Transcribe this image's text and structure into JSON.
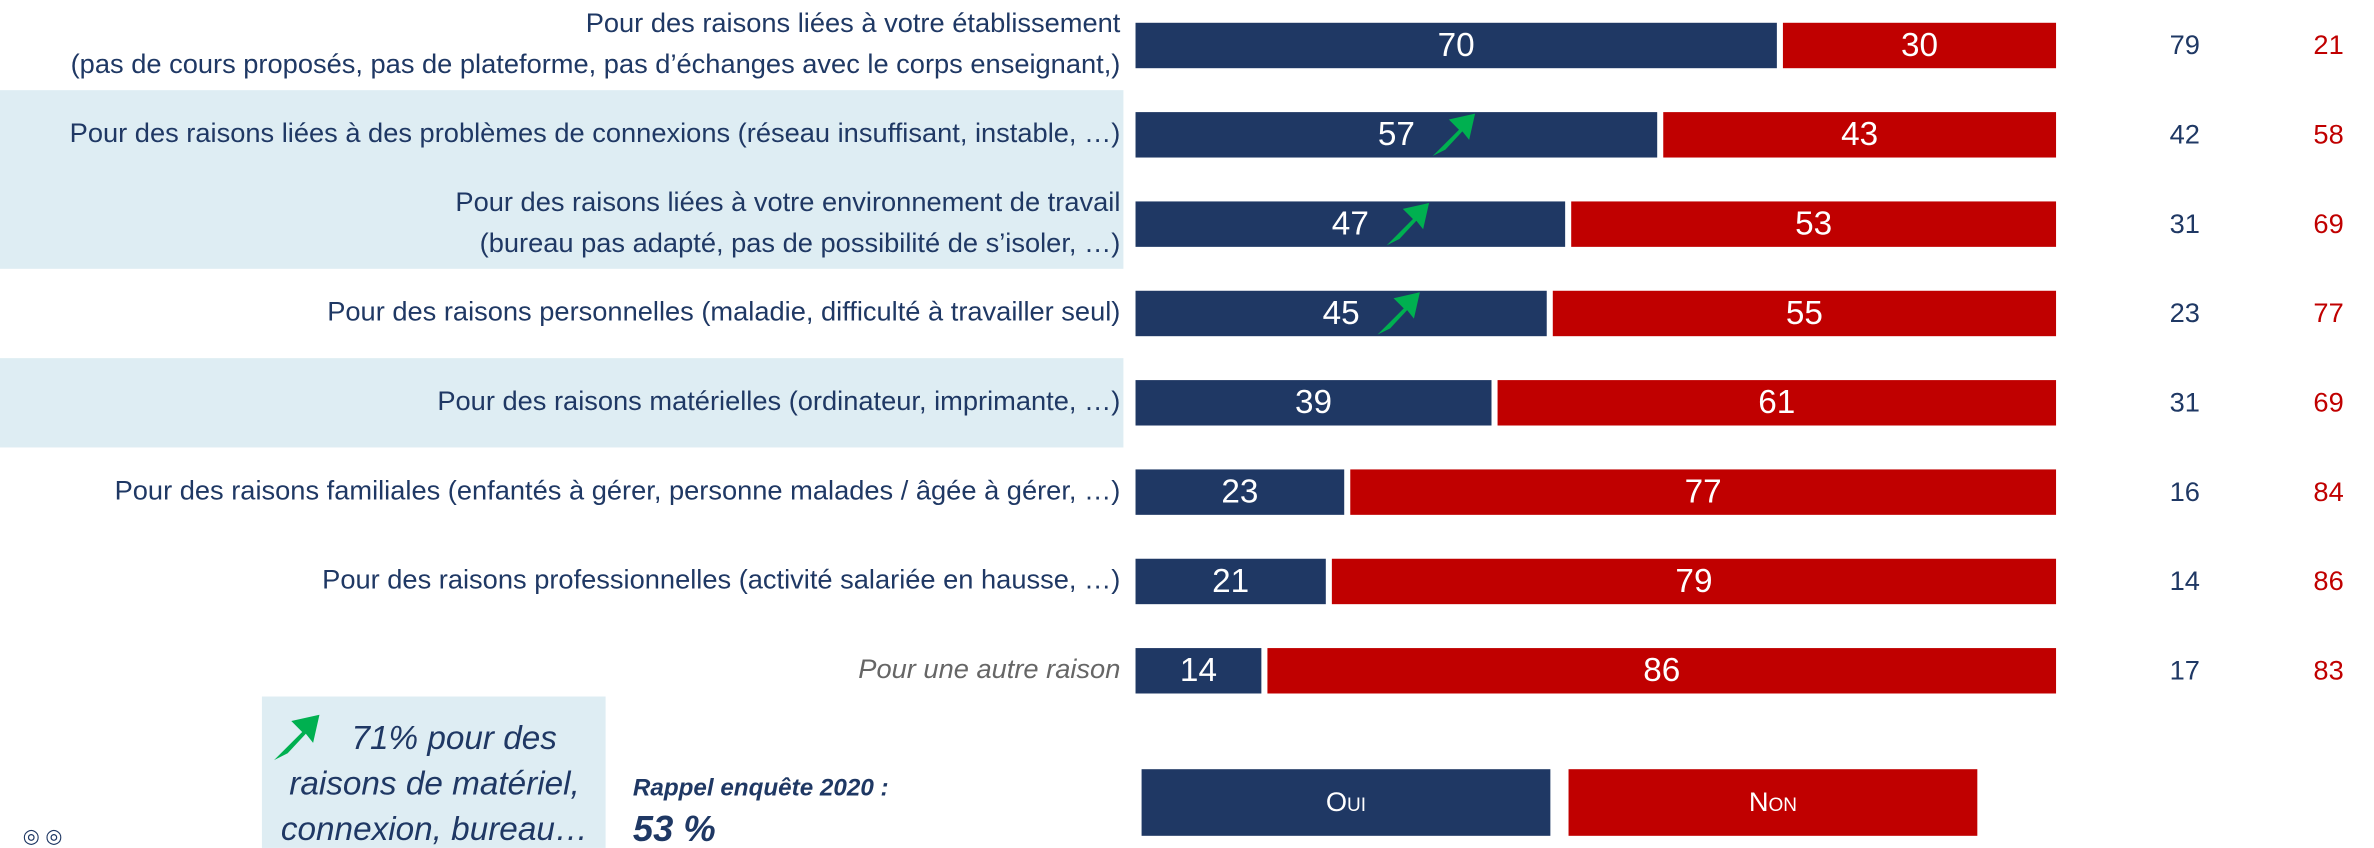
{
  "chart_data": {
    "type": "stacked_bar",
    "categories": [
      [
        "Pour des raisons liées à votre établissement",
        "(pas de cours proposés, pas de plateforme, pas d’échanges avec le corps enseignant,)"
      ],
      [
        "Pour des raisons liées à des problèmes de connexions (réseau insuffisant, instable, …)"
      ],
      [
        "Pour des raisons liées à votre environnement de travail",
        "(bureau pas adapté, pas de possibilité de s’isoler, …)"
      ],
      [
        "Pour des raisons personnelles (maladie, difficulté à travailler seul)"
      ],
      [
        "Pour des raisons matérielles (ordinateur, imprimante, …)"
      ],
      [
        "Pour des raisons familiales (enfantés à gérer, personne malades / âgée à gérer, …)"
      ],
      [
        "Pour des raisons professionnelles (activité salariée en hausse, …)"
      ],
      [
        "Pour une autre raison"
      ]
    ],
    "series": [
      {
        "name": "Oui",
        "color": "#1f3864",
        "values": [
          70,
          57,
          47,
          45,
          39,
          23,
          21,
          14
        ]
      },
      {
        "name": "Non",
        "color": "#c00000",
        "values": [
          30,
          43,
          53,
          55,
          61,
          77,
          79,
          86
        ]
      }
    ],
    "comparison": [
      {
        "color": "#1f3864",
        "values": [
          79,
          42,
          31,
          23,
          31,
          16,
          14,
          17
        ]
      },
      {
        "color": "#c00000",
        "values": [
          21,
          58,
          69,
          77,
          69,
          84,
          86,
          83
        ]
      }
    ],
    "increase": [
      false,
      true,
      true,
      true,
      false,
      false,
      false,
      false
    ],
    "highlight": [
      false,
      true,
      true,
      false,
      true,
      false,
      false,
      false
    ],
    "italic": [
      false,
      false,
      false,
      false,
      false,
      false,
      false,
      true
    ],
    "xlim": [
      0,
      100
    ],
    "annotation": [
      "71% pour des",
      "raisons de matériel,",
      "connexion, bureau…"
    ],
    "reminder_label": "Rappel enquête 2020 :",
    "reminder_value": "53 %"
  }
}
